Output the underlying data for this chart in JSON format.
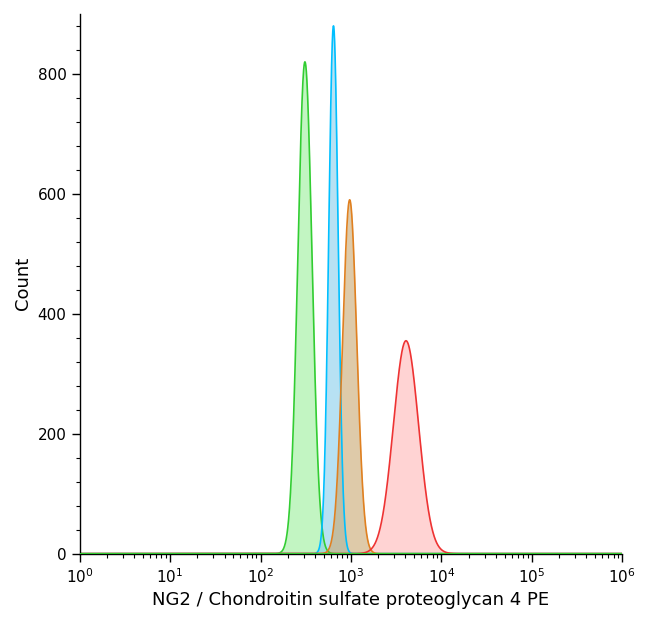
{
  "title": "",
  "xlabel": "NG2 / Chondroitin sulfate proteoglycan 4 PE",
  "ylabel": "Count",
  "xlim": [
    1.0,
    1000000.0
  ],
  "ylim": [
    0,
    900
  ],
  "yticks": [
    0,
    200,
    400,
    600,
    800
  ],
  "background_color": "#ffffff",
  "figsize": [
    6.5,
    6.23
  ],
  "dpi": 100,
  "curves": [
    {
      "name": "green",
      "color_fill": "#90ee90",
      "color_edge": "#32cd32",
      "peak_x": 320,
      "peak_y": 820,
      "sigma": 0.18,
      "alpha_fill": 0.55
    },
    {
      "name": "blue",
      "color_fill": "#87ceeb",
      "color_edge": "#00bfff",
      "peak_x": 650,
      "peak_y": 880,
      "sigma": 0.12,
      "alpha_fill": 0.6
    },
    {
      "name": "orange",
      "color_fill": "#c8a870",
      "color_edge": "#e08020",
      "peak_x": 1000,
      "peak_y": 590,
      "sigma": 0.18,
      "alpha_fill": 0.6
    },
    {
      "name": "red",
      "color_fill": "#ffb0b0",
      "color_edge": "#ee3333",
      "peak_x": 4500,
      "peak_y": 355,
      "sigma": 0.32,
      "alpha_fill": 0.55
    }
  ]
}
